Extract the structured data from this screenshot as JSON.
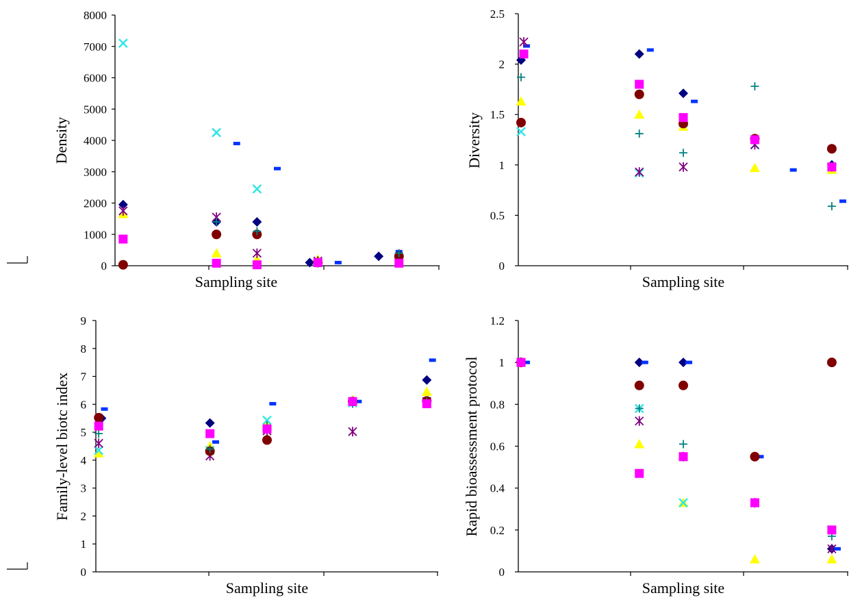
{
  "chart_data": [
    {
      "type": "scatter",
      "id": "density",
      "ylabel": "Density",
      "xlabel": "Sampling site",
      "ylim": [
        0,
        8000
      ],
      "yticks": [
        0,
        1000,
        2000,
        3000,
        4000,
        5000,
        6000,
        7000,
        8000
      ],
      "x_categories": 4,
      "grid": false,
      "series": [
        {
          "marker": "diamond",
          "color": "#000080",
          "points": [
            [
              0.2,
              1950
            ],
            [
              2.5,
              1400
            ],
            [
              3.5,
              1400
            ],
            [
              4.8,
              100
            ],
            [
              6.5,
              300
            ]
          ]
        },
        {
          "marker": "dash",
          "color": "#0033ff",
          "points": [
            [
              0.2,
              800
            ],
            [
              3.0,
              3900
            ],
            [
              4.0,
              3100
            ],
            [
              5.5,
              100
            ],
            [
              7.0,
              450
            ]
          ]
        },
        {
          "marker": "triangle",
          "color": "#ffff00",
          "points": [
            [
              0.2,
              1650
            ],
            [
              2.5,
              400
            ],
            [
              3.5,
              200
            ],
            [
              5.0,
              200
            ],
            [
              7.0,
              80
            ]
          ]
        },
        {
          "marker": "x",
          "color": "#33e6e6",
          "points": [
            [
              0.2,
              7100
            ],
            [
              2.5,
              4250
            ],
            [
              3.5,
              2450
            ],
            [
              5.0,
              100
            ],
            [
              7.0,
              150
            ]
          ]
        },
        {
          "marker": "asterisk",
          "color": "#800080",
          "points": [
            [
              0.2,
              1750
            ],
            [
              2.5,
              1550
            ],
            [
              3.5,
              400
            ],
            [
              5.0,
              150
            ],
            [
              7.0,
              150
            ]
          ]
        },
        {
          "marker": "circle",
          "color": "#800000",
          "points": [
            [
              0.2,
              30
            ],
            [
              2.5,
              1000
            ],
            [
              3.5,
              1000
            ],
            [
              5.0,
              100
            ],
            [
              7.0,
              300
            ]
          ]
        },
        {
          "marker": "plus",
          "color": "#008080",
          "points": [
            [
              0.2,
              850
            ],
            [
              2.5,
              1400
            ],
            [
              3.5,
              1100
            ],
            [
              5.0,
              80
            ],
            [
              7.0,
              400
            ]
          ]
        },
        {
          "marker": "square",
          "color": "#ff00ff",
          "points": [
            [
              0.2,
              850
            ],
            [
              2.5,
              80
            ],
            [
              3.5,
              30
            ],
            [
              5.0,
              100
            ],
            [
              7.0,
              80
            ]
          ]
        }
      ]
    },
    {
      "type": "scatter",
      "id": "diversity",
      "ylabel": "Diversity",
      "xlabel": "Sampling site",
      "ylim": [
        0,
        2.5
      ],
      "yticks": [
        "0",
        "0.5",
        "1",
        "1.5",
        "2",
        "2.5"
      ],
      "x_categories": 3,
      "grid": false,
      "series": [
        {
          "marker": "diamond",
          "color": "#000080",
          "points": [
            [
              0.05,
              2.04
            ],
            [
              2.2,
              2.1
            ],
            [
              3.0,
              1.71
            ],
            [
              4.3,
              1.26
            ],
            [
              5.7,
              1.0
            ]
          ]
        },
        {
          "marker": "dash",
          "color": "#0033ff",
          "points": [
            [
              0.15,
              2.18
            ],
            [
              2.4,
              2.14
            ],
            [
              3.2,
              1.63
            ],
            [
              5.0,
              0.95
            ],
            [
              5.9,
              0.64
            ]
          ]
        },
        {
          "marker": "triangle",
          "color": "#ffff00",
          "points": [
            [
              0.05,
              1.63
            ],
            [
              2.2,
              1.5
            ],
            [
              3.0,
              1.38
            ],
            [
              4.3,
              0.97
            ],
            [
              5.7,
              0.95
            ]
          ]
        },
        {
          "marker": "x",
          "color": "#33e6e6",
          "points": [
            [
              0.05,
              1.33
            ],
            [
              2.2,
              0.92
            ],
            [
              3.0,
              1.42
            ],
            [
              4.3,
              1.2
            ],
            [
              5.7,
              0.98
            ]
          ]
        },
        {
          "marker": "asterisk",
          "color": "#800080",
          "points": [
            [
              0.1,
              2.22
            ],
            [
              2.2,
              0.93
            ],
            [
              3.0,
              0.98
            ],
            [
              4.3,
              1.2
            ],
            [
              5.7,
              0.98
            ]
          ]
        },
        {
          "marker": "circle",
          "color": "#800000",
          "points": [
            [
              0.05,
              1.42
            ],
            [
              2.2,
              1.7
            ],
            [
              3.0,
              1.41
            ],
            [
              4.3,
              1.26
            ],
            [
              5.7,
              1.16
            ]
          ]
        },
        {
          "marker": "plus",
          "color": "#008080",
          "points": [
            [
              0.05,
              1.87
            ],
            [
              2.2,
              1.31
            ],
            [
              3.0,
              1.12
            ],
            [
              4.3,
              1.78
            ],
            [
              5.7,
              0.59
            ]
          ]
        },
        {
          "marker": "square",
          "color": "#ff00ff",
          "points": [
            [
              0.1,
              2.1
            ],
            [
              2.2,
              1.8
            ],
            [
              3.0,
              1.47
            ],
            [
              4.3,
              1.25
            ],
            [
              5.7,
              0.98
            ]
          ]
        }
      ]
    },
    {
      "type": "scatter",
      "id": "fbi",
      "ylabel": "Family-level biotc index",
      "xlabel": "Sampling site",
      "ylim": [
        0,
        9
      ],
      "yticks": [
        0,
        1,
        2,
        3,
        4,
        5,
        6,
        7,
        8,
        9
      ],
      "x_categories": 3,
      "grid": false,
      "series": [
        {
          "marker": "diamond",
          "color": "#000080",
          "points": [
            [
              0.1,
              5.5
            ],
            [
              2.0,
              5.33
            ],
            [
              3.0,
              5.1
            ],
            [
              4.5,
              6.1
            ],
            [
              5.8,
              6.87
            ]
          ]
        },
        {
          "marker": "dash",
          "color": "#0033ff",
          "points": [
            [
              0.15,
              5.83
            ],
            [
              2.1,
              4.65
            ],
            [
              3.1,
              6.02
            ],
            [
              4.6,
              6.1
            ],
            [
              5.9,
              7.58
            ]
          ]
        },
        {
          "marker": "triangle",
          "color": "#ffff00",
          "points": [
            [
              0.05,
              4.25
            ],
            [
              2.0,
              4.5
            ],
            [
              3.0,
              5.33
            ],
            [
              4.5,
              6.15
            ],
            [
              5.8,
              6.45
            ]
          ]
        },
        {
          "marker": "x",
          "color": "#33e6e6",
          "points": [
            [
              0.05,
              4.35
            ],
            [
              2.0,
              4.35
            ],
            [
              3.0,
              5.43
            ],
            [
              4.5,
              6.05
            ],
            [
              5.8,
              6.1
            ]
          ]
        },
        {
          "marker": "asterisk",
          "color": "#800080",
          "points": [
            [
              0.05,
              4.6
            ],
            [
              2.0,
              4.15
            ],
            [
              3.0,
              5.05
            ],
            [
              4.5,
              5.02
            ],
            [
              5.8,
              6.1
            ]
          ]
        },
        {
          "marker": "circle",
          "color": "#800000",
          "points": [
            [
              0.05,
              5.52
            ],
            [
              2.0,
              4.32
            ],
            [
              3.0,
              4.72
            ],
            [
              4.5,
              6.1
            ],
            [
              5.8,
              6.12
            ]
          ]
        },
        {
          "marker": "plus",
          "color": "#008080",
          "points": [
            [
              0.05,
              4.95
            ],
            [
              2.0,
              4.4
            ],
            [
              3.0,
              5.25
            ],
            [
              4.5,
              6.02
            ],
            [
              5.8,
              6.1
            ]
          ]
        },
        {
          "marker": "square",
          "color": "#ff00ff",
          "points": [
            [
              0.05,
              5.22
            ],
            [
              2.0,
              4.95
            ],
            [
              3.0,
              5.12
            ],
            [
              4.5,
              6.1
            ],
            [
              5.8,
              6.02
            ]
          ]
        }
      ]
    },
    {
      "type": "scatter",
      "id": "rbp",
      "ylabel": "Rapid bioassessment protocol",
      "xlabel": "Sampling site",
      "ylim": [
        0,
        1.2
      ],
      "yticks": [
        "0",
        "0.2",
        "0.4",
        "0.6",
        "0.8",
        "1",
        "1.2"
      ],
      "x_categories": 3,
      "grid": false,
      "series": [
        {
          "marker": "diamond",
          "color": "#000080",
          "points": [
            [
              0.05,
              1.0
            ],
            [
              2.2,
              1.0
            ],
            [
              3.0,
              1.0
            ],
            [
              4.3,
              0.55
            ],
            [
              5.7,
              0.11
            ]
          ]
        },
        {
          "marker": "dash",
          "color": "#0033ff",
          "points": [
            [
              0.15,
              1.0
            ],
            [
              2.3,
              1.0
            ],
            [
              3.1,
              1.0
            ],
            [
              4.4,
              0.55
            ],
            [
              5.8,
              0.11
            ]
          ]
        },
        {
          "marker": "triangle",
          "color": "#ffff00",
          "points": [
            [
              0.05,
              1.0
            ],
            [
              2.2,
              0.61
            ],
            [
              3.0,
              0.33
            ],
            [
              4.3,
              0.06
            ],
            [
              5.7,
              0.06
            ]
          ]
        },
        {
          "marker": "x",
          "color": "#33e6e6",
          "points": [
            [
              0.05,
              1.0
            ],
            [
              2.2,
              0.78
            ],
            [
              3.0,
              0.33
            ],
            [
              4.3,
              0.33
            ],
            [
              5.7,
              0.2
            ]
          ]
        },
        {
          "marker": "asterisk",
          "color": "#800080",
          "points": [
            [
              0.05,
              1.0
            ],
            [
              2.2,
              0.72
            ],
            [
              3.0,
              0.55
            ],
            [
              4.3,
              0.33
            ],
            [
              5.7,
              0.11
            ]
          ]
        },
        {
          "marker": "circle",
          "color": "#800000",
          "points": [
            [
              0.05,
              1.0
            ],
            [
              2.2,
              0.89
            ],
            [
              3.0,
              0.89
            ],
            [
              4.3,
              0.55
            ],
            [
              5.7,
              1.0
            ]
          ]
        },
        {
          "marker": "plus",
          "color": "#008080",
          "points": [
            [
              0.05,
              1.0
            ],
            [
              2.2,
              0.78
            ],
            [
              3.0,
              0.61
            ],
            [
              4.3,
              0.33
            ],
            [
              5.7,
              0.17
            ]
          ]
        },
        {
          "marker": "square",
          "color": "#ff00ff",
          "points": [
            [
              0.05,
              1.0
            ],
            [
              2.2,
              0.47
            ],
            [
              3.0,
              0.55
            ],
            [
              4.3,
              0.33
            ],
            [
              5.7,
              0.2
            ]
          ]
        }
      ]
    }
  ]
}
